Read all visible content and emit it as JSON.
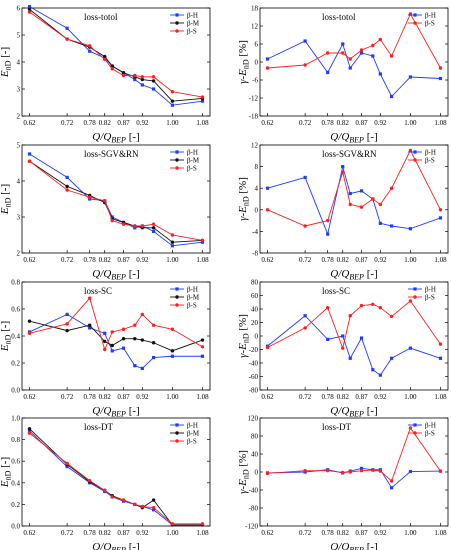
{
  "panel_order": [
    [
      "tl",
      "tr"
    ],
    [
      "sl",
      "sr"
    ],
    [
      "cl",
      "cr"
    ],
    [
      "dl",
      "dr"
    ]
  ],
  "colors": {
    "H": "#1f3bff",
    "M": "#111111",
    "S": "#ff1f1f"
  },
  "legend_labels": [
    "β-H",
    "β-M",
    "β-S"
  ],
  "chart_data": [
    {
      "id": "tl",
      "type": "line",
      "title": "loss-totol",
      "xlabel": "Q/QBEP [-]",
      "ylabel": "EnD [-]",
      "x": [
        0.62,
        0.72,
        0.78,
        0.82,
        0.84,
        0.87,
        0.9,
        0.92,
        0.95,
        1.0,
        1.08
      ],
      "xticks": [
        0.62,
        0.72,
        0.78,
        0.82,
        0.87,
        0.92,
        1.0,
        1.08
      ],
      "xlim": [
        0.6,
        1.1
      ],
      "ylim": [
        2,
        6
      ],
      "yticks": [
        2,
        3,
        4,
        5,
        6
      ],
      "legend": "top-right",
      "series": [
        {
          "key": "H",
          "name": "β-H",
          "values": [
            6.05,
            5.25,
            4.4,
            4.15,
            3.85,
            3.6,
            3.35,
            3.15,
            3.0,
            2.4,
            2.55
          ]
        },
        {
          "key": "M",
          "name": "β-M",
          "values": [
            5.95,
            4.85,
            4.55,
            4.2,
            3.85,
            3.6,
            3.45,
            3.35,
            3.3,
            2.55,
            2.65
          ]
        },
        {
          "key": "S",
          "name": "β-S",
          "values": [
            5.85,
            4.85,
            4.6,
            4.1,
            3.75,
            3.5,
            3.5,
            3.45,
            3.45,
            2.9,
            2.7
          ]
        }
      ]
    },
    {
      "id": "tr",
      "type": "line",
      "title": "loss-totol",
      "xlabel": "Q/QBEP [-]",
      "ylabel": "γ-EnD [%]",
      "x": [
        0.62,
        0.72,
        0.78,
        0.82,
        0.84,
        0.87,
        0.9,
        0.92,
        0.95,
        1.0,
        1.08
      ],
      "xticks": [
        0.62,
        0.72,
        0.78,
        0.82,
        0.87,
        0.92,
        1.0,
        1.08
      ],
      "xlim": [
        0.6,
        1.1
      ],
      "ylim": [
        -18,
        18
      ],
      "yticks": [
        -18,
        -12,
        -6,
        0,
        6,
        12,
        18
      ],
      "legend": "top-right",
      "series": [
        {
          "key": "H",
          "name": "β-H",
          "values": [
            1,
            7,
            -3.5,
            6,
            -2,
            3,
            2,
            -4,
            -11.5,
            -5,
            -5.5
          ]
        },
        {
          "key": "S",
          "name": "β-S",
          "values": [
            -2,
            -1,
            3,
            3,
            1,
            4,
            5.5,
            7.5,
            2,
            16,
            -2
          ]
        }
      ]
    },
    {
      "id": "sl",
      "type": "line",
      "title": "loss-SGV&RN",
      "xlabel": "Q/QBEP [-]",
      "ylabel": "EnD [-]",
      "x": [
        0.62,
        0.72,
        0.78,
        0.82,
        0.84,
        0.87,
        0.9,
        0.92,
        0.95,
        1.0,
        1.08
      ],
      "xticks": [
        0.62,
        0.72,
        0.78,
        0.82,
        0.87,
        0.92,
        1.0,
        1.08
      ],
      "xlim": [
        0.6,
        1.1
      ],
      "ylim": [
        2,
        5
      ],
      "yticks": [
        2,
        3,
        4,
        5
      ],
      "legend": "top-right",
      "series": [
        {
          "key": "H",
          "name": "β-H",
          "values": [
            4.75,
            4.1,
            3.5,
            3.45,
            3.0,
            2.85,
            2.7,
            2.75,
            2.6,
            2.2,
            2.3
          ]
        },
        {
          "key": "M",
          "name": "β-M",
          "values": [
            4.55,
            3.85,
            3.6,
            3.4,
            2.95,
            2.85,
            2.75,
            2.7,
            2.7,
            2.3,
            2.35
          ]
        },
        {
          "key": "S",
          "name": "β-S",
          "values": [
            4.55,
            3.75,
            3.55,
            3.45,
            2.9,
            2.8,
            2.75,
            2.75,
            2.8,
            2.5,
            2.35
          ]
        }
      ]
    },
    {
      "id": "sr",
      "type": "line",
      "title": "loss-SGV&RN",
      "xlabel": "Q/QBEP [-]",
      "ylabel": "γ-EnD [%]",
      "x": [
        0.62,
        0.72,
        0.78,
        0.82,
        0.84,
        0.87,
        0.9,
        0.92,
        0.95,
        1.0,
        1.08
      ],
      "xticks": [
        0.62,
        0.72,
        0.78,
        0.82,
        0.87,
        0.92,
        1.0,
        1.08
      ],
      "xlim": [
        0.6,
        1.1
      ],
      "ylim": [
        -8,
        12
      ],
      "yticks": [
        -8,
        -4,
        0,
        4,
        8,
        12
      ],
      "legend": "top-right",
      "series": [
        {
          "key": "H",
          "name": "β-H",
          "values": [
            4,
            6,
            -4.5,
            8,
            3,
            3.5,
            2,
            -2.5,
            -3,
            -3.5,
            -1.5
          ]
        },
        {
          "key": "S",
          "name": "β-S",
          "values": [
            0,
            -3,
            -2,
            7,
            1,
            0.5,
            2,
            1,
            4,
            11,
            0
          ]
        }
      ]
    },
    {
      "id": "cl",
      "type": "line",
      "title": "loss-SC",
      "xlabel": "Q/QBEP [-]",
      "ylabel": "EnD [-]",
      "x": [
        0.62,
        0.72,
        0.78,
        0.82,
        0.84,
        0.87,
        0.9,
        0.92,
        0.95,
        1.0,
        1.08
      ],
      "xticks": [
        0.62,
        0.72,
        0.78,
        0.82,
        0.87,
        0.92,
        1.0,
        1.08
      ],
      "xlim": [
        0.6,
        1.1
      ],
      "ylim": [
        0.0,
        0.8
      ],
      "yticks": [
        0.0,
        0.2,
        0.4,
        0.6,
        0.8
      ],
      "legend": "top-right",
      "series": [
        {
          "key": "H",
          "name": "β-H",
          "values": [
            0.43,
            0.56,
            0.46,
            0.42,
            0.29,
            0.31,
            0.18,
            0.16,
            0.24,
            0.25,
            0.25
          ]
        },
        {
          "key": "M",
          "name": "β-M",
          "values": [
            0.51,
            0.44,
            0.48,
            0.36,
            0.33,
            0.38,
            0.38,
            0.37,
            0.35,
            0.29,
            0.37
          ]
        },
        {
          "key": "S",
          "name": "β-S",
          "values": [
            0.42,
            0.49,
            0.68,
            0.3,
            0.43,
            0.45,
            0.48,
            0.56,
            0.48,
            0.45,
            0.32
          ]
        }
      ]
    },
    {
      "id": "cr",
      "type": "line",
      "title": "loss-SC",
      "xlabel": "Q/QBEP [-]",
      "ylabel": "γ-EnD [%]",
      "x": [
        0.62,
        0.72,
        0.78,
        0.82,
        0.84,
        0.87,
        0.9,
        0.92,
        0.95,
        1.0,
        1.08
      ],
      "xticks": [
        0.62,
        0.72,
        0.78,
        0.82,
        0.87,
        0.92,
        1.0,
        1.08
      ],
      "xlim": [
        0.6,
        1.1
      ],
      "ylim": [
        -80,
        80
      ],
      "yticks": [
        -80,
        -60,
        -40,
        -20,
        0,
        20,
        40,
        60,
        80
      ],
      "legend": "top-right",
      "series": [
        {
          "key": "H",
          "name": "β-H",
          "values": [
            -15,
            30,
            -5,
            0,
            -33,
            -3,
            -50,
            -58,
            -33,
            -18,
            -33
          ]
        },
        {
          "key": "S",
          "name": "β-S",
          "values": [
            -17,
            12,
            42,
            -18,
            30,
            45,
            47,
            42,
            29,
            52,
            -12
          ]
        }
      ]
    },
    {
      "id": "dl",
      "type": "line",
      "title": "loss-DT",
      "xlabel": "Q/QBEP [-]",
      "ylabel": "EnD [-]",
      "x": [
        0.62,
        0.72,
        0.78,
        0.82,
        0.84,
        0.87,
        0.9,
        0.92,
        0.95,
        1.0,
        1.08
      ],
      "xticks": [
        0.62,
        0.72,
        0.78,
        0.82,
        0.87,
        0.92,
        1.0,
        1.08
      ],
      "xlim": [
        0.6,
        1.1
      ],
      "ylim": [
        0.0,
        1.0
      ],
      "yticks": [
        0.0,
        0.2,
        0.4,
        0.6,
        0.8,
        1.0
      ],
      "legend": "top-right",
      "series": [
        {
          "key": "H",
          "name": "β-H",
          "values": [
            0.88,
            0.55,
            0.4,
            0.32,
            0.27,
            0.23,
            0.2,
            0.18,
            0.15,
            0.01,
            0.01
          ]
        },
        {
          "key": "M",
          "name": "β-M",
          "values": [
            0.9,
            0.57,
            0.41,
            0.33,
            0.28,
            0.24,
            0.2,
            0.17,
            0.24,
            0.01,
            0.01
          ]
        },
        {
          "key": "S",
          "name": "β-S",
          "values": [
            0.86,
            0.58,
            0.42,
            0.33,
            0.27,
            0.24,
            0.2,
            0.18,
            0.17,
            0.02,
            0.02
          ]
        }
      ]
    },
    {
      "id": "dr",
      "type": "line",
      "title": "loss-DT",
      "xlabel": "Q/QBEP [-]",
      "ylabel": "γ-EnD [%]",
      "x": [
        0.62,
        0.72,
        0.78,
        0.82,
        0.84,
        0.87,
        0.9,
        0.92,
        0.95,
        1.0,
        1.08
      ],
      "xticks": [
        0.62,
        0.72,
        0.78,
        0.82,
        0.87,
        0.92,
        1.0,
        1.08
      ],
      "xlim": [
        0.6,
        1.1
      ],
      "ylim": [
        -120,
        120
      ],
      "yticks": [
        -120,
        -80,
        -40,
        0,
        40,
        80,
        120
      ],
      "legend": "top-right",
      "series": [
        {
          "key": "H",
          "name": "β-H",
          "values": [
            -2,
            0,
            5,
            -2,
            2,
            8,
            5,
            5,
            -35,
            1,
            2
          ]
        },
        {
          "key": "S",
          "name": "β-S",
          "values": [
            -3,
            3,
            3,
            -1,
            0,
            3,
            4,
            2,
            -20,
            98,
            2
          ]
        }
      ]
    }
  ]
}
